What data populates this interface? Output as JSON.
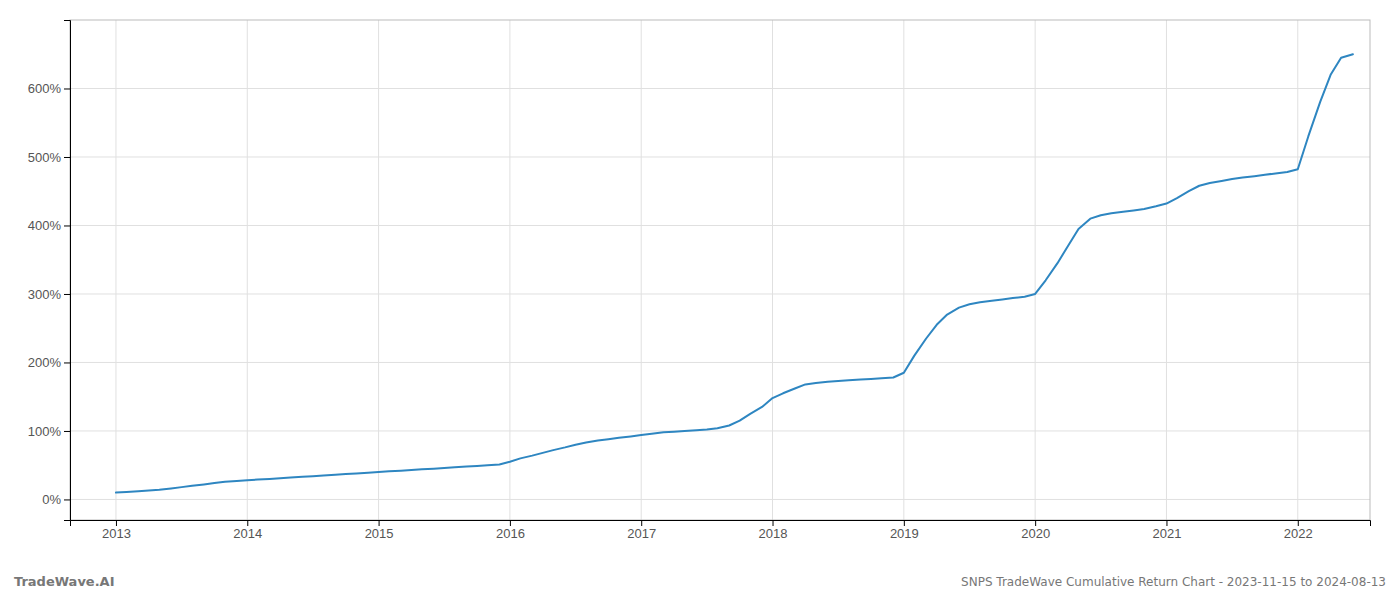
{
  "chart_data": {
    "type": "line",
    "title": "SNPS TradeWave Cumulative Return Chart - 2023-11-15 to 2024-08-13",
    "annotations": [
      "TradeWave.AI"
    ],
    "color": "#2e86c1",
    "grid": true,
    "x": [
      2013.0,
      2013.08,
      2013.17,
      2013.25,
      2013.33,
      2013.42,
      2013.5,
      2013.58,
      2013.67,
      2013.75,
      2013.83,
      2013.92,
      2014.0,
      2014.08,
      2014.17,
      2014.25,
      2014.33,
      2014.42,
      2014.5,
      2014.58,
      2014.67,
      2014.75,
      2014.83,
      2014.92,
      2015.0,
      2015.08,
      2015.17,
      2015.25,
      2015.33,
      2015.42,
      2015.5,
      2015.58,
      2015.67,
      2015.75,
      2015.83,
      2015.92,
      2016.0,
      2016.08,
      2016.17,
      2016.25,
      2016.33,
      2016.42,
      2016.5,
      2016.58,
      2016.67,
      2016.75,
      2016.83,
      2016.92,
      2017.0,
      2017.08,
      2017.17,
      2017.25,
      2017.33,
      2017.42,
      2017.5,
      2017.58,
      2017.67,
      2017.75,
      2017.83,
      2017.92,
      2018.0,
      2018.08,
      2018.17,
      2018.25,
      2018.33,
      2018.42,
      2018.5,
      2018.58,
      2018.67,
      2018.75,
      2018.83,
      2018.92,
      2019.0,
      2019.08,
      2019.17,
      2019.25,
      2019.33,
      2019.42,
      2019.5,
      2019.58,
      2019.67,
      2019.75,
      2019.83,
      2019.92,
      2020.0,
      2020.08,
      2020.17,
      2020.25,
      2020.33,
      2020.42,
      2020.5,
      2020.58,
      2020.67,
      2020.75,
      2020.83,
      2020.92,
      2021.0,
      2021.08,
      2021.17,
      2021.25,
      2021.33,
      2021.42,
      2021.5,
      2021.58,
      2021.67,
      2021.75,
      2021.83,
      2021.92,
      2022.0,
      2022.08,
      2022.17,
      2022.25,
      2022.33,
      2022.42
    ],
    "values": [
      10,
      11,
      12,
      13,
      14,
      16,
      18,
      20,
      22,
      24,
      26,
      27,
      28,
      29,
      30,
      31,
      32,
      33,
      34,
      35,
      36,
      37,
      38,
      39,
      40,
      41,
      42,
      43,
      44,
      45,
      46,
      47,
      48,
      49,
      50,
      51,
      55,
      60,
      64,
      68,
      72,
      76,
      80,
      83,
      86,
      88,
      90,
      92,
      94,
      96,
      98,
      99,
      100,
      101,
      102,
      104,
      108,
      115,
      125,
      135,
      148,
      155,
      162,
      168,
      170,
      172,
      173,
      174,
      175,
      176,
      177,
      178,
      185,
      210,
      235,
      255,
      270,
      280,
      285,
      288,
      290,
      292,
      294,
      296,
      300,
      320,
      345,
      370,
      395,
      410,
      415,
      418,
      420,
      422,
      424,
      428,
      432,
      440,
      450,
      458,
      462,
      465,
      468,
      470,
      472,
      474,
      476,
      478,
      482,
      530,
      580,
      620,
      645,
      650
    ],
    "xlim": [
      2012.65,
      2022.55
    ],
    "xticks": [
      2013,
      2014,
      2015,
      2016,
      2017,
      2018,
      2019,
      2020,
      2021,
      2022
    ],
    "ylim": [
      -30,
      700
    ],
    "yticks": [
      {
        "value": 0,
        "label": "0%"
      },
      {
        "value": 100,
        "label": "100%"
      },
      {
        "value": 200,
        "label": "200%"
      },
      {
        "value": 300,
        "label": "300%"
      },
      {
        "value": 400,
        "label": "400%"
      },
      {
        "value": 500,
        "label": "500%"
      },
      {
        "value": 600,
        "label": "600%"
      }
    ]
  }
}
